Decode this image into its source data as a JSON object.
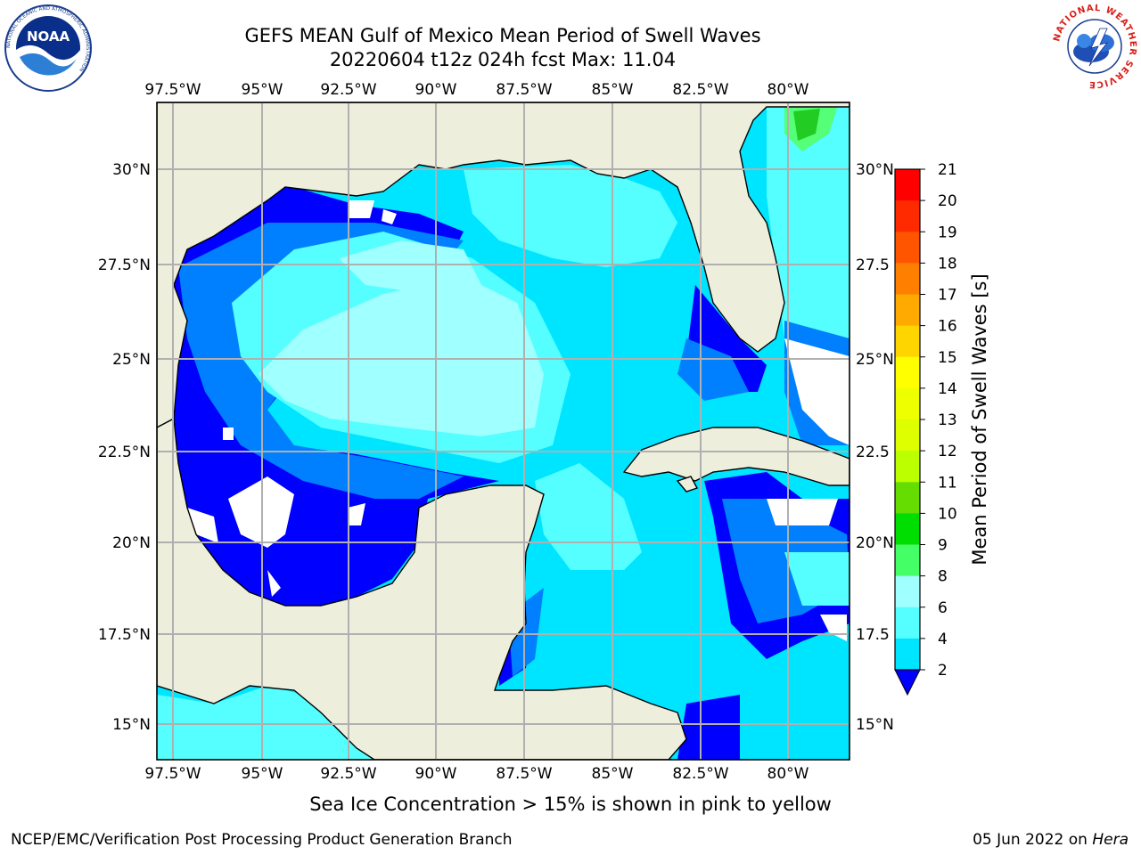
{
  "title": {
    "line1": "GEFS MEAN Gulf of Mexico Mean Period of Swell Waves",
    "line2": "20220604 t12z 024h fcst   Max: 11.04"
  },
  "map": {
    "lon_labels": [
      "97.5°W",
      "95°W",
      "92.5°W",
      "90°W",
      "87.5°W",
      "85°W",
      "82.5°W",
      "80°W"
    ],
    "lat_labels_left": [
      "30°N",
      "27.5°N",
      "25°N",
      "22.5°N",
      "20°N",
      "17.5°N",
      "15°N"
    ],
    "lat_labels_right": [
      "30°N",
      "27.5",
      "25°N",
      "22.5",
      "20°N",
      "17.5",
      "15°N"
    ],
    "colors": {
      "land": "#EEEEDD",
      "band_2_4": "#0000FF",
      "band_4_6": "#0080FF",
      "band_6_8": "#00E5FF",
      "band_8_9": "#55FFFF",
      "band_9_10": "#A0FFFF",
      "band_10_11": "#55FF77",
      "band_11_12": "#22CC22",
      "grid": "#B0B0B0"
    }
  },
  "colorbar": {
    "label": "Mean Period of Swell Waves [s]",
    "ticks": [
      "21",
      "20",
      "19",
      "18",
      "17",
      "16",
      "15",
      "14",
      "13",
      "12",
      "11",
      "10",
      "9",
      "8",
      "6",
      "4",
      "2"
    ],
    "colors": [
      "#FF0000",
      "#FF2A00",
      "#FF5500",
      "#FF8000",
      "#FFAA00",
      "#FFD500",
      "#FFFF00",
      "#EEFF00",
      "#DDFF00",
      "#BBFF00",
      "#66DD00",
      "#00DD00",
      "#44FF66",
      "#A0FFFF",
      "#55FFFF",
      "#00E5FF",
      "#0080FF",
      "#0000FF"
    ]
  },
  "ice_note": "Sea Ice Concentration > 15% is shown in pink to yellow",
  "footer": {
    "left": "NCEP/EMC/Verification Post Processing Product Generation Branch",
    "date": "05 Jun 2022 on ",
    "machine": "Hera"
  },
  "logos": {
    "noaa_text": "NOAA",
    "noaa_ring": "NATIONAL OCEANIC AND ATMOSPHERIC ADMINISTRATION",
    "nws_ring": "NATIONAL WEATHER SERVICE"
  }
}
